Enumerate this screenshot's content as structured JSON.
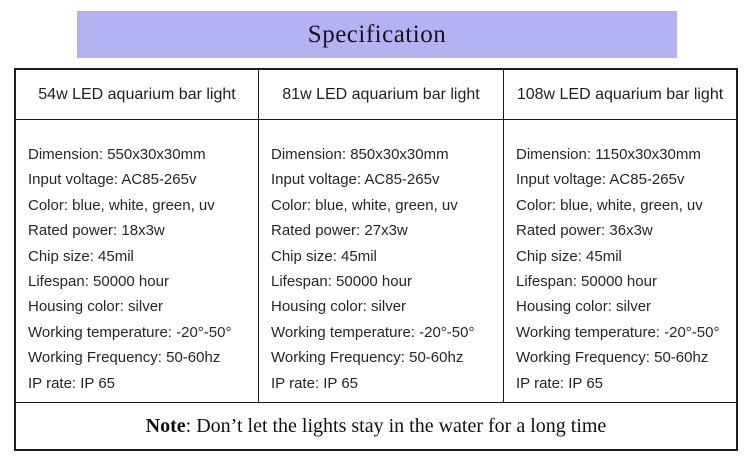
{
  "title": "Specification",
  "colors": {
    "banner_bg": "#b5b2f4",
    "border": "#1c1c1c",
    "text": "#262626"
  },
  "columns": [
    {
      "header": "54w LED aquarium bar light",
      "specs": [
        "Dimension: 550x30x30mm",
        "Input voltage: AC85-265v",
        "Color: blue, white, green, uv",
        "Rated power: 18x3w",
        "Chip size: 45mil",
        "Lifespan: 50000 hour",
        "Housing color: silver",
        "Working temperature: -20°-50°",
        "Working Frequency: 50-60hz",
        "IP rate: IP 65"
      ]
    },
    {
      "header": "81w LED aquarium bar light",
      "specs": [
        "Dimension: 850x30x30mm",
        "Input voltage: AC85-265v",
        "Color: blue, white, green, uv",
        "Rated power: 27x3w",
        "Chip size: 45mil",
        "Lifespan: 50000 hour",
        "Housing color: silver",
        "Working temperature: -20°-50°",
        "Working Frequency: 50-60hz",
        "IP rate: IP 65"
      ]
    },
    {
      "header": "108w LED aquarium bar light",
      "specs": [
        "Dimension: 1150x30x30mm",
        "Input voltage: AC85-265v",
        "Color: blue, white, green, uv",
        "Rated power: 36x3w",
        "Chip size: 45mil",
        "Lifespan: 50000 hour",
        "Housing color: silver",
        "Working temperature: -20°-50°",
        "Working Frequency: 50-60hz",
        "IP rate: IP 65"
      ]
    }
  ],
  "note": {
    "label": "Note",
    "text": ": Don’t let the lights stay in the water for a long time"
  }
}
